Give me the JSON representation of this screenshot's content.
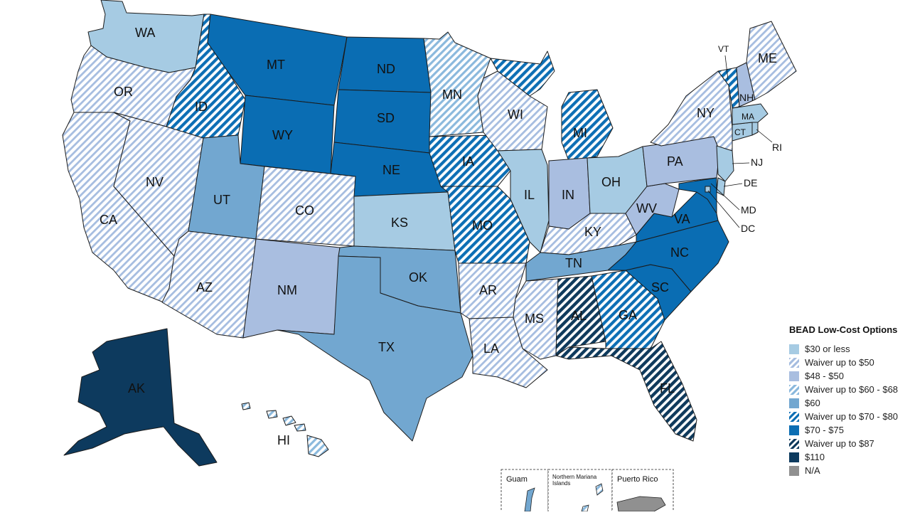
{
  "legend": {
    "title": "BEAD Low-Cost Options",
    "items": [
      {
        "key": "c30",
        "label": "$30 or less",
        "color": "#a6cbe3",
        "pattern": "solid"
      },
      {
        "key": "w50",
        "label": "Waiver up to $50",
        "color": "#a6bde0",
        "pattern": "hatch"
      },
      {
        "key": "c48",
        "label": "$48 - $50",
        "color": "#a9bee0",
        "pattern": "solid"
      },
      {
        "key": "w68",
        "label": "Waiver up to $60 - $68",
        "color": "#8bb9dd",
        "pattern": "hatch"
      },
      {
        "key": "c60",
        "label": "$60",
        "color": "#72a7d0",
        "pattern": "solid"
      },
      {
        "key": "w80",
        "label": "Waiver up to $70 - $80",
        "color": "#0d6fb5",
        "pattern": "hatch"
      },
      {
        "key": "c75",
        "label": "$70 - $75",
        "color": "#0a6db3",
        "pattern": "solid"
      },
      {
        "key": "w87",
        "label": "Waiver up to $87",
        "color": "#0f3a5c",
        "pattern": "hatch"
      },
      {
        "key": "c110",
        "label": "$110",
        "color": "#0d3a5e",
        "pattern": "solid"
      },
      {
        "key": "na",
        "label": "N/A",
        "color": "#909090",
        "pattern": "solid"
      }
    ]
  },
  "states": [
    {
      "abbr": "WA",
      "category": "$30 or less"
    },
    {
      "abbr": "OR",
      "category": "Waiver up to $50"
    },
    {
      "abbr": "CA",
      "category": "Waiver up to $50"
    },
    {
      "abbr": "NV",
      "category": "Waiver up to $50"
    },
    {
      "abbr": "ID",
      "category": "Waiver up to $70 - $80"
    },
    {
      "abbr": "MT",
      "category": "$70 - $75"
    },
    {
      "abbr": "WY",
      "category": "$70 - $75"
    },
    {
      "abbr": "UT",
      "category": "$60"
    },
    {
      "abbr": "AZ",
      "category": "Waiver up to $50"
    },
    {
      "abbr": "CO",
      "category": "Waiver up to $50"
    },
    {
      "abbr": "NM",
      "category": "$48 - $50"
    },
    {
      "abbr": "ND",
      "category": "$70 - $75"
    },
    {
      "abbr": "SD",
      "category": "$70 - $75"
    },
    {
      "abbr": "NE",
      "category": "$70 - $75"
    },
    {
      "abbr": "KS",
      "category": "$30 or less"
    },
    {
      "abbr": "OK",
      "category": "$60"
    },
    {
      "abbr": "TX",
      "category": "$60"
    },
    {
      "abbr": "MN",
      "category": "Waiver up to $60 - $68"
    },
    {
      "abbr": "IA",
      "category": "Waiver up to $70 - $80"
    },
    {
      "abbr": "MO",
      "category": "Waiver up to $70 - $80"
    },
    {
      "abbr": "AR",
      "category": "Waiver up to $50"
    },
    {
      "abbr": "LA",
      "category": "Waiver up to $50"
    },
    {
      "abbr": "WI",
      "category": "Waiver up to $50"
    },
    {
      "abbr": "IL",
      "category": "$30 or less"
    },
    {
      "abbr": "MI",
      "category": "Waiver up to $70 - $80"
    },
    {
      "abbr": "IN",
      "category": "$48 - $50"
    },
    {
      "abbr": "OH",
      "category": "$30 or less"
    },
    {
      "abbr": "KY",
      "category": "Waiver up to $50"
    },
    {
      "abbr": "TN",
      "category": "$60"
    },
    {
      "abbr": "MS",
      "category": "Waiver up to $50"
    },
    {
      "abbr": "AL",
      "category": "Waiver up to $87"
    },
    {
      "abbr": "GA",
      "category": "Waiver up to $70 - $80"
    },
    {
      "abbr": "FL",
      "category": "Waiver up to $87"
    },
    {
      "abbr": "SC",
      "category": "$70 - $75"
    },
    {
      "abbr": "NC",
      "category": "$70 - $75"
    },
    {
      "abbr": "VA",
      "category": "$70 - $75"
    },
    {
      "abbr": "WV",
      "category": "$48 - $50"
    },
    {
      "abbr": "PA",
      "category": "$48 - $50"
    },
    {
      "abbr": "NY",
      "category": "Waiver up to $50"
    },
    {
      "abbr": "ME",
      "category": "Waiver up to $50"
    },
    {
      "abbr": "VT",
      "category": "Waiver up to $70 - $80"
    },
    {
      "abbr": "NH",
      "category": "$48 - $50"
    },
    {
      "abbr": "MA",
      "category": "$30 or less"
    },
    {
      "abbr": "CT",
      "category": "$30 or less"
    },
    {
      "abbr": "RI",
      "category": "$30 or less"
    },
    {
      "abbr": "NJ",
      "category": "$30 or less"
    },
    {
      "abbr": "DE",
      "category": "$30 or less"
    },
    {
      "abbr": "MD",
      "category": "$70 - $75"
    },
    {
      "abbr": "DC",
      "category": "$30 or less"
    },
    {
      "abbr": "AK",
      "category": "$110"
    },
    {
      "abbr": "HI",
      "category": "Waiver up to $60 - $68"
    }
  ],
  "insets": {
    "guam": {
      "label": "Guam",
      "category": "$60"
    },
    "nmi": {
      "label": "Northern Mariana Islands",
      "line1": "Northern Mariana",
      "line2": "Islands",
      "category": "Waiver up to $60 - $68"
    },
    "pr": {
      "label": "Puerto Rico",
      "category": "N/A"
    }
  }
}
